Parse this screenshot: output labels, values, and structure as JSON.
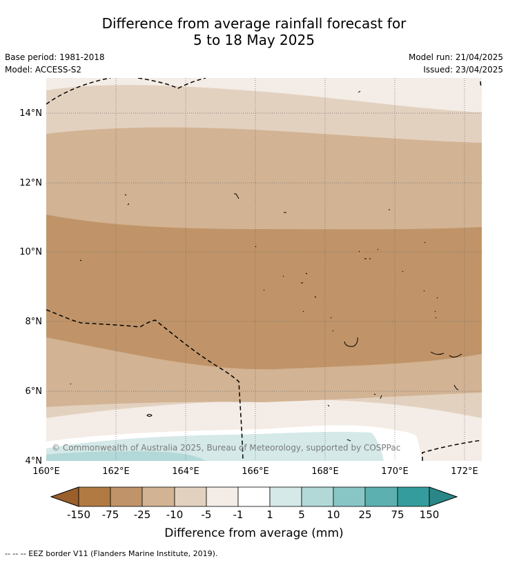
{
  "title": {
    "line1": "Difference from average rainfall forecast for",
    "line2": "5 to 18 May 2025"
  },
  "meta": {
    "base_period": "Base period: 1981-2018",
    "model": "Model: ACCESS-S2",
    "model_run": "Model run: 21/04/2025",
    "issued": "Issued: 23/04/2025"
  },
  "axes": {
    "lat_ticks": [
      "14°N",
      "12°N",
      "10°N",
      "8°N",
      "6°N",
      "4°N"
    ],
    "lon_ticks": [
      "160°E",
      "162°E",
      "164°E",
      "166°E",
      "168°E",
      "170°E",
      "172°E"
    ]
  },
  "copyright": "© Commonwealth of Australia 2025, Bureau of Meteorology, supported by COSPPac",
  "colorbar": {
    "label": "Difference from average (mm)",
    "ticks": [
      "-150",
      "-75",
      "-25",
      "-10",
      "-5",
      "-1",
      "1",
      "5",
      "10",
      "25",
      "75",
      "150"
    ],
    "colors": {
      "lt_neg150": "#9a5f2b",
      "neg150_neg75": "#b07a42",
      "neg75_neg25": "#c09468",
      "neg25_neg10": "#d2b393",
      "neg10_neg5": "#e3d1c0",
      "neg5_neg1": "#f4ece6",
      "neg1_1": "#ffffff",
      "1_5": "#d4e9e8",
      "5_10": "#b2d8d8",
      "10_25": "#88c6c6",
      "25_75": "#5cb0b0",
      "75_150": "#349c9c",
      "gt_150": "#2b8787"
    }
  },
  "footer": "--  --  -- EEZ border V11 (Flanders Marine Institute, 2019)."
}
